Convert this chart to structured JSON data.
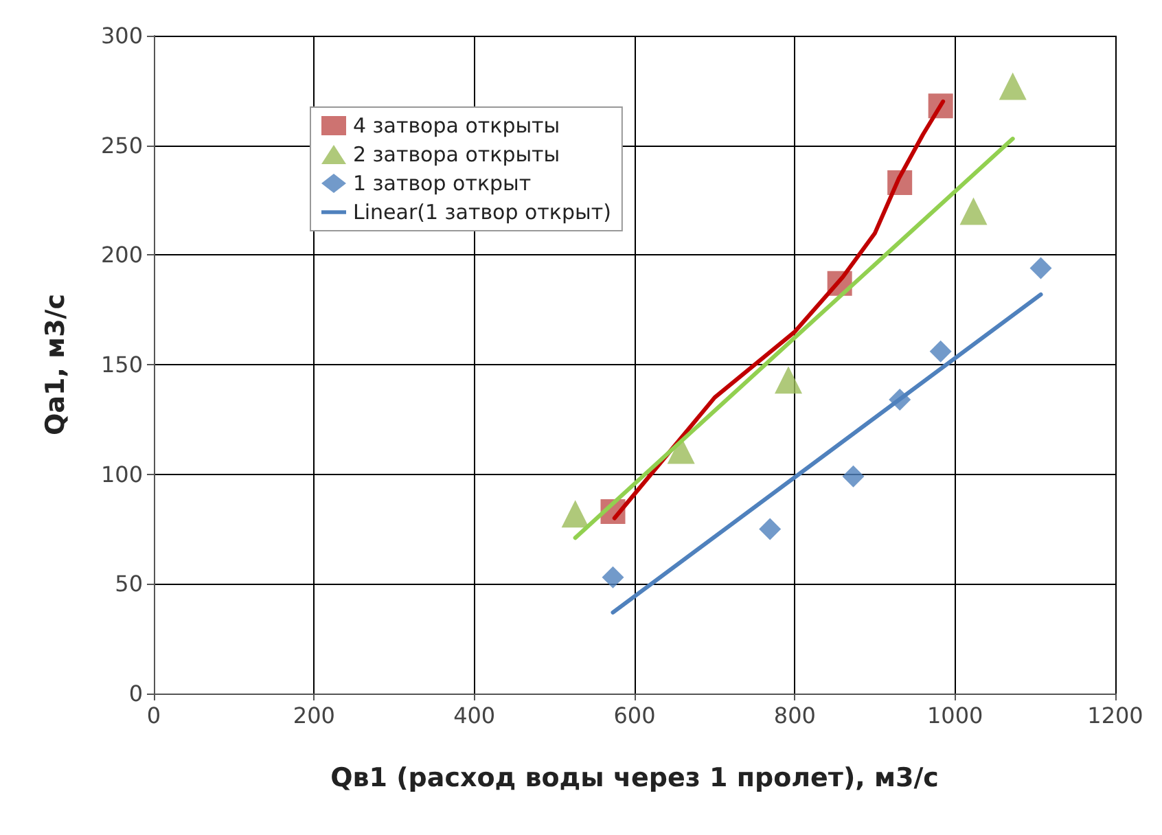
{
  "chart_data": {
    "type": "scatter",
    "xlabel": "Qв1 (расход воды через 1 пролет), м3/с",
    "ylabel": "Qa1, м3/с",
    "xlim": [
      0,
      1200
    ],
    "xticks": [
      0,
      200,
      400,
      600,
      800,
      1000,
      1200
    ],
    "ylim": [
      0,
      300
    ],
    "yticks": [
      0,
      50,
      100,
      150,
      200,
      250,
      300
    ],
    "grid": true,
    "legend": "top left",
    "series": [
      {
        "name": "4 затвора открыты",
        "marker": "square",
        "color": "#c0504d",
        "x": [
          573,
          856,
          931,
          982
        ],
        "values": [
          83,
          187,
          233,
          268
        ]
      },
      {
        "name": "2 затвора открыты",
        "marker": "triangle",
        "color": "#9bbb59",
        "x": [
          526,
          658,
          792,
          1023,
          1072
        ],
        "values": [
          82,
          111,
          143,
          220,
          277
        ]
      },
      {
        "name": "1 затвор открыт",
        "marker": "diamond",
        "color": "#4f81bd",
        "x": [
          573,
          769,
          873,
          931,
          982,
          1107
        ],
        "values": [
          53,
          75,
          99,
          134,
          156,
          194
        ]
      },
      {
        "type": "line",
        "marker": "none",
        "color": "#c00000",
        "x": [
          575,
          700,
          800,
          860,
          900,
          930,
          960,
          985
        ],
        "values": [
          80,
          135,
          165,
          190,
          210,
          235,
          255,
          270
        ]
      },
      {
        "type": "line",
        "marker": "none",
        "color": "#92d050",
        "x": [
          526,
          1072
        ],
        "values": [
          71,
          253
        ]
      },
      {
        "name": "Linear(1 затвор открыт)",
        "type": "line",
        "marker": "none",
        "color": "#4f81bd",
        "x": [
          573,
          1107
        ],
        "values": [
          37,
          182
        ]
      }
    ]
  }
}
